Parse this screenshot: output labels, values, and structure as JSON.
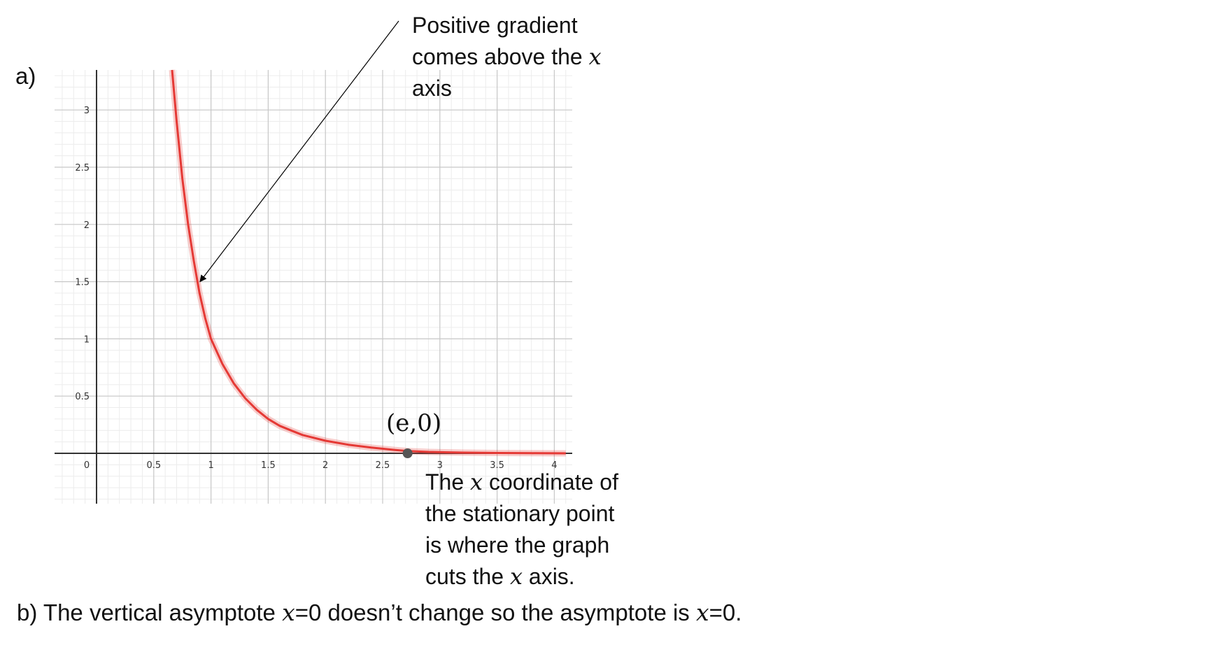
{
  "part_a_label": "a)",
  "annotations": {
    "gradient_note": [
      "Positive gradient",
      "comes above the ",
      "axis"
    ],
    "gradient_note_var": "x",
    "point_label": "(e,0)",
    "stationary_note_1a": "The ",
    "stationary_note_1var": "x",
    "stationary_note_1b": " coordinate of",
    "stationary_note_2": "the stationary point",
    "stationary_note_3": "is where the graph",
    "stationary_note_4a": "cuts the ",
    "stationary_note_4var": "x",
    "stationary_note_4b": " axis."
  },
  "part_b": {
    "prefix": "b) The vertical asymptote  ",
    "var1": "x",
    "middle": "=0 doesn’t change so the asymptote is ",
    "var2": "x",
    "suffix": "=0."
  },
  "chart_data": {
    "type": "line",
    "xlim": [
      0,
      4.1
    ],
    "ylim": [
      0,
      3.35
    ],
    "x_ticks": [
      0,
      0.5,
      1,
      1.5,
      2,
      2.5,
      3,
      3.5,
      4
    ],
    "x_tick_labels": [
      "0",
      "0.5",
      "1",
      "1.5",
      "2",
      "2.5",
      "3",
      "3.5",
      "4"
    ],
    "y_ticks": [
      0.5,
      1,
      1.5,
      2,
      2.5,
      3
    ],
    "y_tick_labels": [
      "0.5",
      "1",
      "1.5",
      "2",
      "2.5",
      "3"
    ],
    "grid": true,
    "curve_color": "#e53935",
    "series": [
      {
        "x": [
          0.66,
          0.7,
          0.75,
          0.8,
          0.85,
          0.9,
          0.95,
          1.0,
          1.1,
          1.2,
          1.3,
          1.4,
          1.5,
          1.6,
          1.7,
          1.8,
          2.0,
          2.2,
          2.4,
          2.6,
          2.72,
          2.9,
          3.2,
          3.5,
          3.8,
          4.1
        ],
        "y": [
          3.35,
          2.9,
          2.4,
          2.0,
          1.68,
          1.4,
          1.18,
          1.0,
          0.78,
          0.61,
          0.48,
          0.38,
          0.3,
          0.24,
          0.2,
          0.16,
          0.11,
          0.075,
          0.05,
          0.03,
          0.02,
          0.012,
          0.006,
          0.003,
          0.001,
          0.0
        ]
      }
    ],
    "point": {
      "x": 2.718,
      "y": 0.0,
      "color": "#555555"
    },
    "arrow_target": {
      "x": 0.88,
      "y": 1.5
    }
  }
}
